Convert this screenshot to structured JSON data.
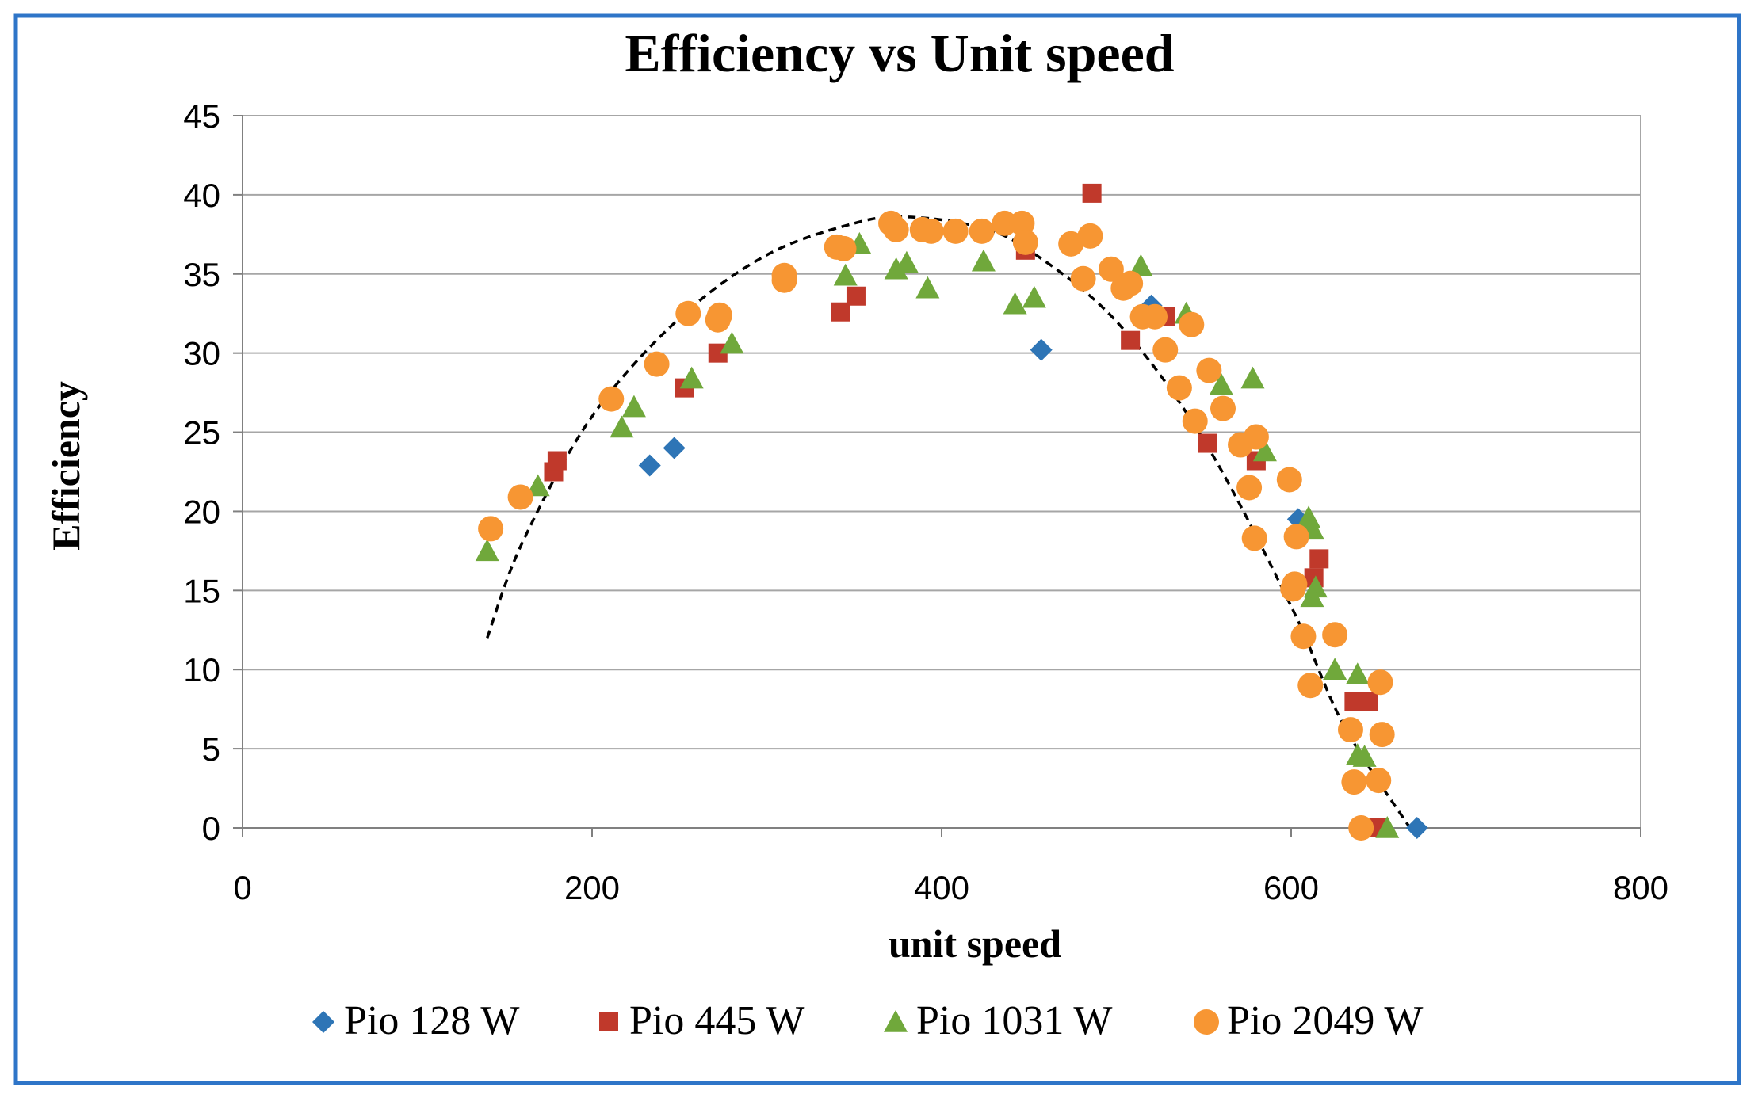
{
  "colors": {
    "frame": "#2e75c8",
    "grid": "#a6a6a6",
    "axis": "#808080",
    "text": "#000000",
    "pio128": "#2e75b6",
    "pio445": "#c0392b",
    "pio1031": "#70a83b",
    "pio2049": "#f79633",
    "trend": "#000000"
  },
  "chart_data": {
    "type": "scatter",
    "title": "Efficiency vs Unit speed",
    "xlabel": "unit speed",
    "ylabel": "Efficiency",
    "xlim": [
      0,
      800
    ],
    "ylim": [
      0,
      45
    ],
    "xticks": [
      0,
      200,
      400,
      600,
      800
    ],
    "yticks": [
      0,
      5,
      10,
      15,
      20,
      25,
      30,
      35,
      40,
      45
    ],
    "grid": "horizontal",
    "legend_position": "bottom",
    "series": [
      {
        "name": "Pio 128 W",
        "marker": "diamond",
        "color_key": "pio128",
        "points": [
          [
            233,
            22.9
          ],
          [
            247,
            24
          ],
          [
            457,
            30.2
          ],
          [
            520,
            33
          ],
          [
            604,
            19.5
          ],
          [
            672,
            0
          ]
        ]
      },
      {
        "name": "Pio 445 W",
        "marker": "square",
        "color_key": "pio445",
        "points": [
          [
            178,
            22.5
          ],
          [
            180,
            23.2
          ],
          [
            253,
            27.8
          ],
          [
            272,
            30
          ],
          [
            342,
            32.6
          ],
          [
            351,
            33.6
          ],
          [
            448,
            36.5
          ],
          [
            486,
            40.1
          ],
          [
            508,
            30.8
          ],
          [
            528,
            32.3
          ],
          [
            552,
            24.3
          ],
          [
            580,
            23.2
          ],
          [
            613,
            15.8
          ],
          [
            616,
            17
          ],
          [
            636,
            8
          ],
          [
            644,
            8
          ],
          [
            650,
            0
          ]
        ]
      },
      {
        "name": "Pio 1031 W",
        "marker": "triangle",
        "color_key": "pio1031",
        "points": [
          [
            140,
            17.5
          ],
          [
            169,
            21.6
          ],
          [
            217,
            25.3
          ],
          [
            224,
            26.6
          ],
          [
            257,
            28.4
          ],
          [
            280,
            30.6
          ],
          [
            345,
            34.9
          ],
          [
            353,
            36.9
          ],
          [
            374,
            35.3
          ],
          [
            380,
            35.7
          ],
          [
            392,
            34.1
          ],
          [
            424,
            35.8
          ],
          [
            442,
            33.1
          ],
          [
            453,
            33.5
          ],
          [
            514,
            35.5
          ],
          [
            540,
            32.5
          ],
          [
            560,
            28
          ],
          [
            578,
            28.4
          ],
          [
            585,
            23.8
          ],
          [
            610,
            19.6
          ],
          [
            612,
            18.9
          ],
          [
            614,
            15.2
          ],
          [
            612,
            14.6
          ],
          [
            625,
            10
          ],
          [
            638,
            9.7
          ],
          [
            638,
            4.6
          ],
          [
            642,
            4.5
          ],
          [
            655,
            0
          ]
        ]
      },
      {
        "name": "Pio 2049 W",
        "marker": "circle",
        "color_key": "pio2049",
        "points": [
          [
            142,
            18.9
          ],
          [
            159,
            20.9
          ],
          [
            211,
            27.1
          ],
          [
            237,
            29.3
          ],
          [
            255,
            32.5
          ],
          [
            273,
            32.4
          ],
          [
            272,
            32.1
          ],
          [
            310,
            34.9
          ],
          [
            310,
            34.6
          ],
          [
            340,
            36.7
          ],
          [
            344,
            36.6
          ],
          [
            371,
            38.2
          ],
          [
            374,
            37.8
          ],
          [
            389,
            37.8
          ],
          [
            394,
            37.7
          ],
          [
            408,
            37.7
          ],
          [
            423,
            37.7
          ],
          [
            436,
            38.2
          ],
          [
            446,
            38.2
          ],
          [
            448,
            37
          ],
          [
            474,
            36.9
          ],
          [
            485,
            37.4
          ],
          [
            481,
            34.7
          ],
          [
            497,
            35.3
          ],
          [
            504,
            34.1
          ],
          [
            508,
            34.4
          ],
          [
            515,
            32.3
          ],
          [
            522,
            32.3
          ],
          [
            528,
            30.2
          ],
          [
            536,
            27.8
          ],
          [
            543,
            31.8
          ],
          [
            545,
            25.7
          ],
          [
            553,
            28.9
          ],
          [
            561,
            26.5
          ],
          [
            571,
            24.2
          ],
          [
            576,
            21.5
          ],
          [
            580,
            24.7
          ],
          [
            579,
            18.3
          ],
          [
            599,
            22
          ],
          [
            603,
            18.4
          ],
          [
            601,
            15.1
          ],
          [
            602,
            15.4
          ],
          [
            607,
            12.1
          ],
          [
            611,
            9
          ],
          [
            625,
            12.2
          ],
          [
            634,
            6.2
          ],
          [
            636,
            2.9
          ],
          [
            640,
            0
          ],
          [
            651,
            9.2
          ],
          [
            650,
            3
          ],
          [
            652,
            5.9
          ]
        ]
      }
    ],
    "trendline": {
      "name": "trend",
      "style": "dashed",
      "type": "polynomial",
      "x_range": [
        140,
        668
      ],
      "points": [
        [
          140,
          12
        ],
        [
          160,
          18
        ],
        [
          200,
          26
        ],
        [
          250,
          32.2
        ],
        [
          300,
          36.2
        ],
        [
          350,
          38.2
        ],
        [
          380,
          38.6
        ],
        [
          420,
          38
        ],
        [
          450,
          36.5
        ],
        [
          500,
          32
        ],
        [
          550,
          24.5
        ],
        [
          600,
          14
        ],
        [
          630,
          6.5
        ],
        [
          668,
          0
        ]
      ]
    }
  }
}
